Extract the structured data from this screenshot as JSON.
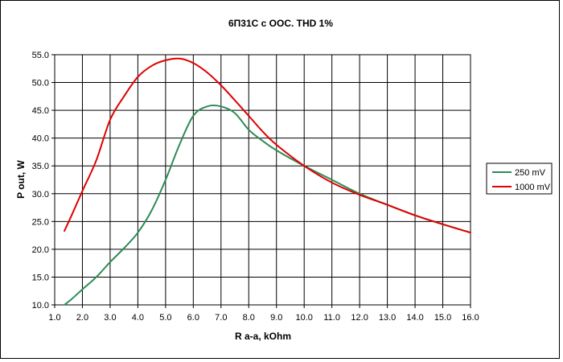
{
  "chart_data": {
    "type": "line",
    "title": "6П31С с ООС. THD 1%",
    "xlabel": "R a-a, kOhm",
    "ylabel": "P out, W",
    "xlim": [
      1.0,
      16.0
    ],
    "ylim": [
      10.0,
      55.0
    ],
    "x_ticks": [
      "1.0",
      "2.0",
      "3.0",
      "4.0",
      "5.0",
      "6.0",
      "7.0",
      "8.0",
      "9.0",
      "10.0",
      "11.0",
      "12.0",
      "13.0",
      "14.0",
      "15.0",
      "16.0"
    ],
    "y_ticks": [
      "10.0",
      "15.0",
      "20.0",
      "25.0",
      "30.0",
      "35.0",
      "40.0",
      "45.0",
      "50.0",
      "55.0"
    ],
    "grid": true,
    "legend_position": "right",
    "series": [
      {
        "name": "250 mV",
        "color": "#2e8b57",
        "points": [
          [
            1.35,
            10.0
          ],
          [
            1.6,
            11.0
          ],
          [
            2.0,
            12.8
          ],
          [
            2.5,
            15.0
          ],
          [
            3.0,
            17.7
          ],
          [
            3.5,
            20.2
          ],
          [
            4.0,
            23.0
          ],
          [
            4.5,
            27.0
          ],
          [
            5.0,
            32.5
          ],
          [
            5.5,
            38.8
          ],
          [
            6.0,
            44.0
          ],
          [
            6.5,
            45.7
          ],
          [
            7.0,
            45.7
          ],
          [
            7.5,
            44.5
          ],
          [
            8.0,
            41.5
          ],
          [
            8.5,
            39.5
          ],
          [
            9.0,
            37.8
          ],
          [
            10.0,
            35.0
          ],
          [
            11.0,
            32.5
          ],
          [
            12.0,
            30.0
          ],
          [
            13.0,
            28.0
          ],
          [
            14.0,
            26.1
          ],
          [
            15.0,
            24.5
          ],
          [
            16.0,
            23.0
          ]
        ]
      },
      {
        "name": "1000 mV",
        "color": "#e00000",
        "points": [
          [
            1.35,
            23.3
          ],
          [
            1.6,
            26.0
          ],
          [
            2.0,
            30.5
          ],
          [
            2.5,
            36.0
          ],
          [
            3.0,
            43.3
          ],
          [
            3.5,
            47.5
          ],
          [
            4.0,
            51.0
          ],
          [
            4.5,
            53.0
          ],
          [
            5.0,
            54.0
          ],
          [
            5.5,
            54.3
          ],
          [
            6.0,
            53.5
          ],
          [
            6.5,
            51.8
          ],
          [
            7.0,
            49.5
          ],
          [
            7.5,
            46.8
          ],
          [
            8.0,
            44.0
          ],
          [
            8.5,
            41.2
          ],
          [
            9.0,
            38.8
          ],
          [
            10.0,
            35.0
          ],
          [
            11.0,
            32.0
          ],
          [
            12.0,
            29.8
          ],
          [
            13.0,
            28.0
          ],
          [
            14.0,
            26.1
          ],
          [
            15.0,
            24.5
          ],
          [
            16.0,
            23.0
          ]
        ]
      }
    ]
  }
}
